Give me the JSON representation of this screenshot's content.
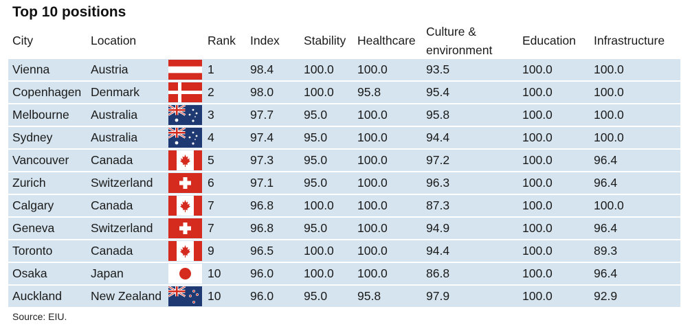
{
  "title": "Top 10 positions",
  "source": "Source: EIU.",
  "chart_data": {
    "type": "table",
    "columns": [
      "City",
      "Location",
      "Rank",
      "Index",
      "Stability",
      "Healthcare",
      "Culture &",
      "environment",
      "Education",
      "Infrastructure"
    ],
    "rows": [
      {
        "city": "Vienna",
        "location": "Austria",
        "flag": "austria",
        "rank": "1",
        "index": "98.4",
        "stability": "100.0",
        "healthcare": "100.0",
        "culture": "93.5",
        "education": "100.0",
        "infrastructure": "100.0"
      },
      {
        "city": "Copenhagen",
        "location": "Denmark",
        "flag": "denmark",
        "rank": "2",
        "index": "98.0",
        "stability": "100.0",
        "healthcare": "95.8",
        "culture": "95.4",
        "education": "100.0",
        "infrastructure": "100.0"
      },
      {
        "city": "Melbourne",
        "location": "Australia",
        "flag": "australia",
        "rank": "3",
        "index": "97.7",
        "stability": "95.0",
        "healthcare": "100.0",
        "culture": "95.8",
        "education": "100.0",
        "infrastructure": "100.0"
      },
      {
        "city": "Sydney",
        "location": "Australia",
        "flag": "australia",
        "rank": "4",
        "index": "97.4",
        "stability": "95.0",
        "healthcare": "100.0",
        "culture": "94.4",
        "education": "100.0",
        "infrastructure": "100.0"
      },
      {
        "city": "Vancouver",
        "location": "Canada",
        "flag": "canada",
        "rank": "5",
        "index": "97.3",
        "stability": "95.0",
        "healthcare": "100.0",
        "culture": "97.2",
        "education": "100.0",
        "infrastructure": "96.4"
      },
      {
        "city": "Zurich",
        "location": "Switzerland",
        "flag": "switzerland",
        "rank": "6",
        "index": "97.1",
        "stability": "95.0",
        "healthcare": "100.0",
        "culture": "96.3",
        "education": "100.0",
        "infrastructure": "96.4"
      },
      {
        "city": "Calgary",
        "location": "Canada",
        "flag": "canada",
        "rank": "7",
        "index": "96.8",
        "stability": "100.0",
        "healthcare": "100.0",
        "culture": "87.3",
        "education": "100.0",
        "infrastructure": "100.0"
      },
      {
        "city": "Geneva",
        "location": "Switzerland",
        "flag": "switzerland",
        "rank": "7",
        "index": "96.8",
        "stability": "95.0",
        "healthcare": "100.0",
        "culture": "94.9",
        "education": "100.0",
        "infrastructure": "96.4"
      },
      {
        "city": "Toronto",
        "location": "Canada",
        "flag": "canada",
        "rank": "9",
        "index": "96.5",
        "stability": "100.0",
        "healthcare": "100.0",
        "culture": "94.4",
        "education": "100.0",
        "infrastructure": "89.3"
      },
      {
        "city": "Osaka",
        "location": "Japan",
        "flag": "japan",
        "rank": "10",
        "index": "96.0",
        "stability": "100.0",
        "healthcare": "100.0",
        "culture": "86.8",
        "education": "100.0",
        "infrastructure": "96.4"
      },
      {
        "city": "Auckland",
        "location": "New Zealand",
        "flag": "new-zealand",
        "rank": "10",
        "index": "96.0",
        "stability": "95.0",
        "healthcare": "95.8",
        "culture": "97.9",
        "education": "100.0",
        "infrastructure": "92.9"
      }
    ]
  },
  "colors": {
    "row_background": "#d5e4ee",
    "flag_red": "#d52b1e",
    "flag_blue": "#1f3a72"
  }
}
